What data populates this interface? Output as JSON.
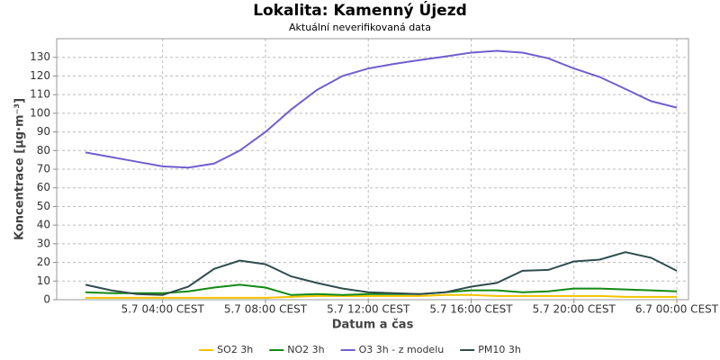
{
  "chart_data": {
    "type": "line",
    "title": "Lokalita: Kamenný Újezd",
    "subtitle": "Aktuální neverifikovaná data",
    "x_label": "Datum a čas",
    "y_label": "Koncentrace [µg·m⁻³]",
    "categories": [
      null,
      null,
      null,
      "5.7 04:00 CEST",
      null,
      null,
      null,
      "5.7 08:00 CEST",
      null,
      null,
      null,
      "5.7 12:00 CEST",
      null,
      null,
      null,
      "5.7 16:00 CEST",
      null,
      null,
      null,
      "5.7 20:00 CEST",
      null,
      null,
      null,
      "6.7 00:00 CEST"
    ],
    "ylim": [
      0,
      140
    ],
    "yticks": [
      0,
      10,
      20,
      30,
      40,
      50,
      60,
      70,
      80,
      90,
      100,
      110,
      120,
      130
    ],
    "grid": true,
    "legend": "bottom",
    "series": [
      {
        "name": "SO2 3h",
        "color": "#f2c200",
        "values": [
          1,
          1,
          1,
          1,
          1,
          1,
          1,
          1,
          1.5,
          2,
          2,
          2,
          2,
          2,
          2.5,
          2.5,
          2,
          2,
          2,
          2,
          2,
          1.5,
          1.5,
          1.5
        ]
      },
      {
        "name": "NO2 3h",
        "color": "#138a13",
        "values": [
          4,
          3.5,
          3.5,
          3.5,
          4.5,
          6.5,
          8,
          6.5,
          2.5,
          3,
          2.5,
          3,
          3,
          3,
          4,
          5,
          5,
          4,
          4.5,
          6,
          6,
          5.5,
          5,
          4.5
        ]
      },
      {
        "name": "O3 3h - z modelu",
        "color": "#6f5fd0",
        "values": [
          79,
          76.5,
          74,
          71.5,
          70.8,
          73,
          80,
          90,
          102,
          112.5,
          120,
          124,
          126.5,
          128.5,
          130.5,
          132.5,
          133.5,
          132.5,
          129.5,
          124,
          119.5,
          113,
          106.5,
          103
        ]
      },
      {
        "name": "PM10 3h",
        "color": "#2f4d4d",
        "values": [
          8,
          5,
          3,
          2.5,
          7,
          16.5,
          21,
          19,
          12.5,
          9,
          6,
          4,
          3.5,
          3,
          4,
          7,
          9,
          15.5,
          16,
          20.5,
          21.5,
          25.5,
          22.5,
          15.5
        ]
      }
    ]
  }
}
